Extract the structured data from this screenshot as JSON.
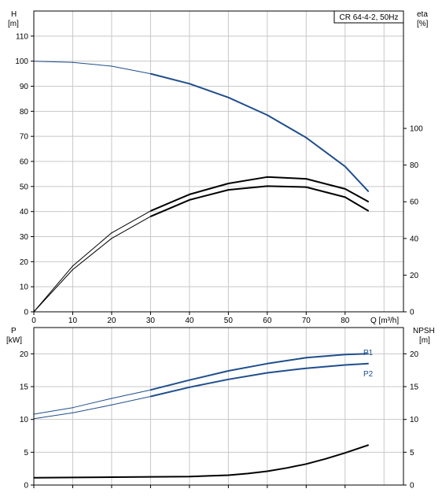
{
  "colors": {
    "blue": "#1f4e8c",
    "black": "#000000",
    "grid": "#c8c8c8"
  },
  "chart_data": [
    {
      "type": "line",
      "title": "CR 64-4-2, 50Hz",
      "xlabel": "Q [m³/h]",
      "ylabel_left": [
        "H",
        "[m]"
      ],
      "ylabel_right": [
        "eta",
        "[%]"
      ],
      "xlim": [
        0,
        95
      ],
      "ylim_left": [
        0,
        120
      ],
      "ylim_right": [
        0,
        164
      ],
      "x_ticks": [
        "0",
        "10",
        "20",
        "30",
        "40",
        "50",
        "60",
        "70",
        "80"
      ],
      "y_ticks_left": [
        "0",
        "10",
        "20",
        "30",
        "40",
        "50",
        "60",
        "70",
        "80",
        "90",
        "100",
        "110"
      ],
      "y_ticks_right": [
        "0",
        "20",
        "40",
        "60",
        "80",
        "100"
      ],
      "grid": true,
      "series": [
        {
          "id": "head",
          "axis": "left",
          "color": "#1f4e8c",
          "x": [
            0,
            10,
            20,
            30,
            40,
            50,
            60,
            70,
            80,
            86
          ],
          "y": [
            100,
            99.5,
            98,
            95,
            91,
            85.5,
            78.5,
            69.5,
            58,
            48
          ]
        },
        {
          "id": "eta-thin",
          "axis": "right",
          "x": [
            0,
            10,
            20,
            30,
            40,
            50,
            60,
            70,
            80,
            86
          ],
          "y": [
            0,
            25,
            43,
            55,
            64,
            70,
            73.5,
            72.5,
            67,
            60
          ]
        },
        {
          "id": "eta-thick",
          "axis": "right",
          "x": [
            0,
            10,
            20,
            30,
            40,
            50,
            60,
            70,
            80,
            86
          ],
          "y": [
            0,
            23,
            40,
            52,
            61,
            66.5,
            68.5,
            68,
            62.5,
            55
          ]
        }
      ]
    },
    {
      "type": "line",
      "xlabel": "",
      "ylabel_left": [
        "P",
        "[kW]"
      ],
      "ylabel_right": [
        "NPSH",
        "[m]"
      ],
      "xlim": [
        0,
        95
      ],
      "ylim_left": [
        0,
        24
      ],
      "ylim_right": [
        0,
        24
      ],
      "y_ticks_left": [
        "0",
        "5",
        "10",
        "15",
        "20"
      ],
      "y_ticks_right": [
        "0",
        "5",
        "10",
        "15",
        "20"
      ],
      "grid": true,
      "series": [
        {
          "id": "P1",
          "name": "P1",
          "axis": "left",
          "color": "#1f4e8c",
          "x": [
            0,
            10,
            20,
            30,
            40,
            50,
            60,
            70,
            80,
            86
          ],
          "y": [
            10.8,
            11.8,
            13.2,
            14.5,
            16,
            17.4,
            18.5,
            19.4,
            19.9,
            20
          ]
        },
        {
          "id": "P2",
          "name": "P2",
          "axis": "left",
          "color": "#1f4e8c",
          "x": [
            0,
            10,
            20,
            30,
            40,
            50,
            60,
            70,
            80,
            86
          ],
          "y": [
            10.1,
            11,
            12.2,
            13.5,
            14.9,
            16.1,
            17.1,
            17.8,
            18.3,
            18.5
          ]
        },
        {
          "id": "NPSH",
          "axis": "right",
          "color": "#000000",
          "x": [
            0,
            10,
            20,
            30,
            40,
            50,
            55,
            60,
            65,
            70,
            75,
            80,
            86
          ],
          "y": [
            1.1,
            1.15,
            1.2,
            1.25,
            1.3,
            1.5,
            1.75,
            2.1,
            2.6,
            3.2,
            4,
            4.9,
            6.1
          ]
        }
      ]
    }
  ]
}
